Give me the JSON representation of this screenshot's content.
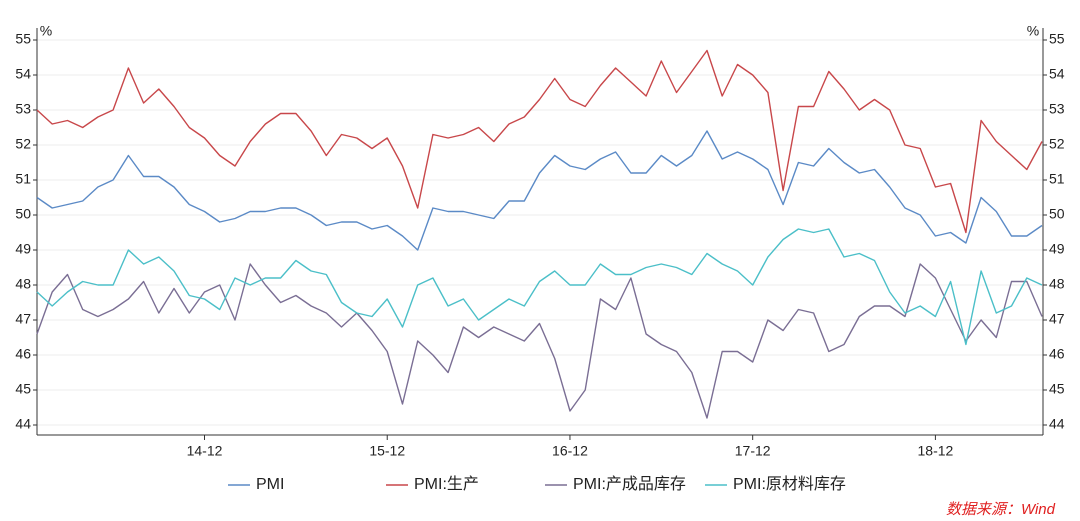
{
  "chart_data": {
    "type": "line",
    "ylabel": "%",
    "y2label": "%",
    "source": "数据来源：Wind",
    "grid": true,
    "ylim": [
      44,
      55
    ],
    "yticks": [
      44,
      45,
      46,
      47,
      48,
      49,
      50,
      51,
      52,
      53,
      54,
      55
    ],
    "y2lim": [
      44,
      55
    ],
    "y2ticks": [
      44,
      45,
      46,
      47,
      48,
      49,
      50,
      51,
      52,
      53,
      54,
      55
    ],
    "categories": [
      null,
      null,
      null,
      null,
      null,
      null,
      null,
      null,
      null,
      null,
      null,
      "14-12",
      null,
      null,
      null,
      null,
      null,
      null,
      null,
      null,
      null,
      null,
      null,
      "15-12",
      null,
      null,
      null,
      null,
      null,
      null,
      null,
      null,
      null,
      null,
      null,
      "16-12",
      null,
      null,
      null,
      null,
      null,
      null,
      null,
      null,
      null,
      null,
      null,
      "17-12",
      null,
      null,
      null,
      null,
      null,
      null,
      null,
      null,
      null,
      null,
      null,
      "18-12",
      null,
      null,
      null,
      null,
      null,
      null,
      null
    ],
    "series": [
      {
        "name": "PMI",
        "color": "#5b8ac6",
        "values": [
          50.5,
          50.2,
          50.3,
          50.4,
          50.8,
          51.0,
          51.7,
          51.1,
          51.1,
          50.8,
          50.3,
          50.1,
          49.8,
          49.9,
          50.1,
          50.1,
          50.2,
          50.2,
          50.0,
          49.7,
          49.8,
          49.8,
          49.6,
          49.7,
          49.4,
          49.0,
          50.2,
          50.1,
          50.1,
          50.0,
          49.9,
          50.4,
          50.4,
          51.2,
          51.7,
          51.4,
          51.3,
          51.6,
          51.8,
          51.2,
          51.2,
          51.7,
          51.4,
          51.7,
          52.4,
          51.6,
          51.8,
          51.6,
          51.3,
          50.3,
          51.5,
          51.4,
          51.9,
          51.5,
          51.2,
          51.3,
          50.8,
          50.2,
          50.0,
          49.4,
          49.5,
          49.2,
          50.5,
          50.1,
          49.4,
          49.4,
          49.7
        ]
      },
      {
        "name": "PMI:生产",
        "color": "#c8474a",
        "values": [
          53.0,
          52.6,
          52.7,
          52.5,
          52.8,
          53.0,
          54.2,
          53.2,
          53.6,
          53.1,
          52.5,
          52.2,
          51.7,
          51.4,
          52.1,
          52.6,
          52.9,
          52.9,
          52.4,
          51.7,
          52.3,
          52.2,
          51.9,
          52.2,
          51.4,
          50.2,
          52.3,
          52.2,
          52.3,
          52.5,
          52.1,
          52.6,
          52.8,
          53.3,
          53.9,
          53.3,
          53.1,
          53.7,
          54.2,
          53.8,
          53.4,
          54.4,
          53.5,
          54.1,
          54.7,
          53.4,
          54.3,
          54.0,
          53.5,
          50.7,
          53.1,
          53.1,
          54.1,
          53.6,
          53.0,
          53.3,
          53.0,
          52.0,
          51.9,
          50.8,
          50.9,
          49.5,
          52.7,
          52.1,
          51.7,
          51.3,
          52.1
        ]
      },
      {
        "name": "PMI:产成品库存",
        "color": "#7a6e94",
        "values": [
          46.6,
          47.8,
          48.3,
          47.3,
          47.1,
          47.3,
          47.6,
          48.1,
          47.2,
          47.9,
          47.2,
          47.8,
          48.0,
          47.0,
          48.6,
          48.0,
          47.5,
          47.7,
          47.4,
          47.2,
          46.8,
          47.2,
          46.7,
          46.1,
          44.6,
          46.4,
          46.0,
          45.5,
          46.8,
          46.5,
          46.8,
          46.6,
          46.4,
          46.9,
          45.9,
          44.4,
          45.0,
          47.6,
          47.3,
          48.2,
          46.6,
          46.3,
          46.1,
          45.5,
          44.2,
          46.1,
          46.1,
          45.8,
          47.0,
          46.7,
          47.3,
          47.2,
          46.1,
          46.3,
          47.1,
          47.4,
          47.4,
          47.1,
          48.6,
          48.2,
          47.3,
          46.4,
          47.0,
          46.5,
          48.1,
          48.1,
          47.1
        ]
      },
      {
        "name": "PMI:原材料库存",
        "color": "#4bbfc8",
        "values": [
          47.8,
          47.4,
          47.8,
          48.1,
          48.0,
          48.0,
          49.0,
          48.6,
          48.8,
          48.4,
          47.7,
          47.6,
          47.3,
          48.2,
          48.0,
          48.2,
          48.2,
          48.7,
          48.4,
          48.3,
          47.5,
          47.2,
          47.1,
          47.6,
          46.8,
          48.0,
          48.2,
          47.4,
          47.6,
          47.0,
          47.3,
          47.6,
          47.4,
          48.1,
          48.4,
          48.0,
          48.0,
          48.6,
          48.3,
          48.3,
          48.5,
          48.6,
          48.5,
          48.3,
          48.9,
          48.6,
          48.4,
          48.0,
          48.8,
          49.3,
          49.6,
          49.5,
          49.6,
          48.8,
          48.9,
          48.7,
          47.8,
          47.2,
          47.4,
          47.1,
          48.1,
          46.3,
          48.4,
          47.2,
          47.4,
          48.2,
          48.0
        ]
      }
    ]
  }
}
